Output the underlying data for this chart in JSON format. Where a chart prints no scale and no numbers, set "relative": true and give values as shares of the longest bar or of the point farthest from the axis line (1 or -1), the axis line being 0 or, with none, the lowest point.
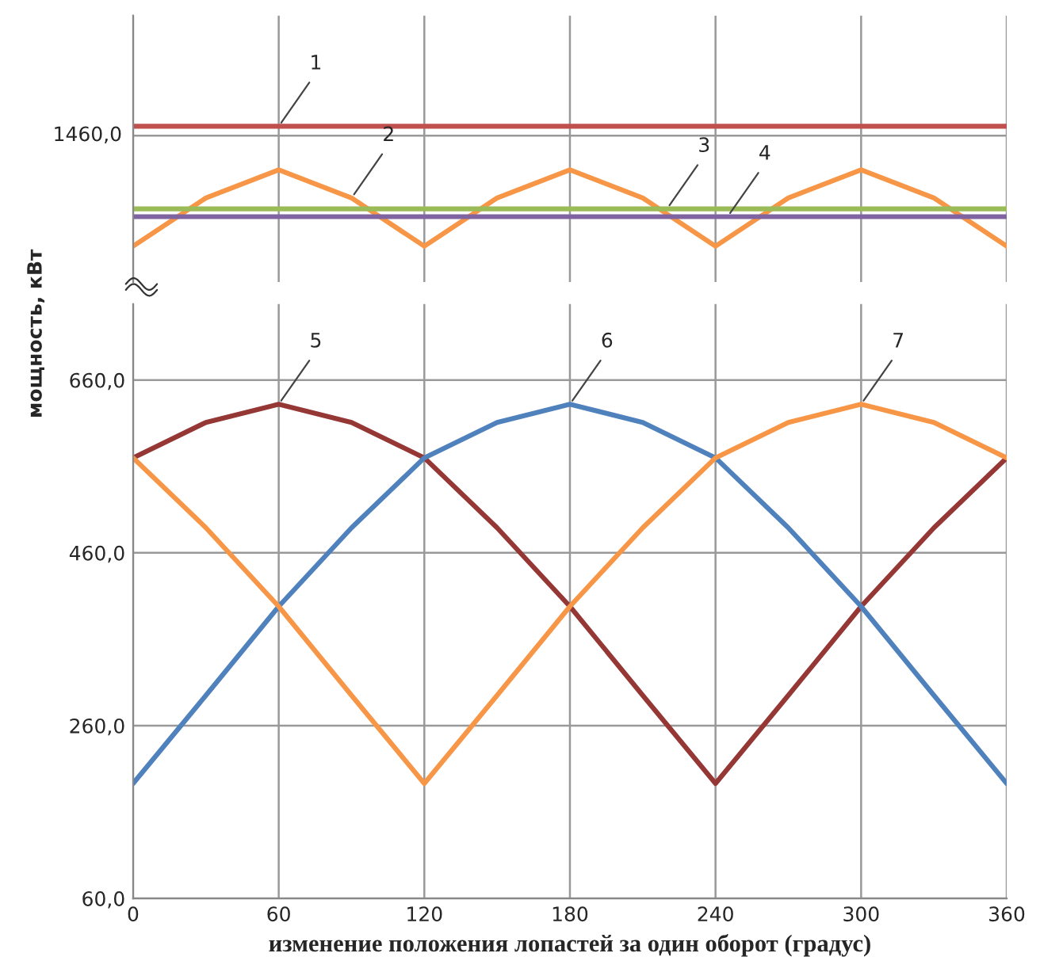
{
  "chart_data": [
    {
      "type": "line",
      "x": [
        0,
        30,
        60,
        90,
        120,
        150,
        180,
        210,
        240,
        270,
        300,
        330,
        360
      ],
      "xlim": [
        0,
        360
      ],
      "relative": true,
      "tick_labels": false,
      "ref_lines": [
        {
          "axis": "y",
          "value": 0.94
        }
      ],
      "grid": true,
      "marker": "none",
      "line_style": "solid",
      "series": [
        {
          "color": "#c0504d",
          "values": [
            1,
            1,
            1,
            1,
            1,
            1,
            1,
            1,
            1,
            1,
            1,
            1,
            1
          ]
        },
        {
          "color": "#f79646",
          "values": [
            0.23,
            0.54,
            0.72,
            0.54,
            0.23,
            0.54,
            0.72,
            0.54,
            0.23,
            0.54,
            0.72,
            0.54,
            0.23
          ]
        },
        {
          "color": "#9bbb59",
          "values": [
            0.47,
            0.47,
            0.47,
            0.47,
            0.47,
            0.47,
            0.47,
            0.47,
            0.47,
            0.47,
            0.47,
            0.47,
            0.47
          ]
        },
        {
          "color": "#8064a2",
          "values": [
            0.42,
            0.42,
            0.42,
            0.42,
            0.42,
            0.42,
            0.42,
            0.42,
            0.42,
            0.42,
            0.42,
            0.42,
            0.42
          ]
        }
      ],
      "annotations": [
        "1460,0",
        {
          "text": "1",
          "x": 60,
          "y": 1
        },
        {
          "text": "2",
          "x": 90,
          "y": 0.54
        },
        {
          "text": "3",
          "x": 220,
          "y": 0.47
        },
        {
          "text": "4",
          "x": 245,
          "y": 0.42
        }
      ]
    },
    {
      "type": "line",
      "x": [
        0,
        30,
        60,
        90,
        120,
        150,
        180,
        210,
        240,
        270,
        300,
        330,
        360
      ],
      "xlim": [
        0,
        360
      ],
      "xticks": [
        0,
        60,
        120,
        180,
        240,
        300,
        360
      ],
      "ylim": [
        60,
        748
      ],
      "yticks": [
        {
          "value": 60,
          "label": "60,0"
        },
        {
          "value": 260,
          "label": "260,0"
        },
        {
          "value": 460,
          "label": "460,0"
        },
        {
          "value": 660,
          "label": "660,0"
        }
      ],
      "grid": true,
      "marker": "none",
      "line_style": "solid",
      "xlabel": "изменение положения лопастей за один оборот (градус)",
      "ylabel": "мощность, кВт",
      "series": [
        {
          "color": "#953735",
          "values": [
            570,
            611,
            632,
            611,
            570,
            489,
            398,
            295,
            193,
            295,
            398,
            489,
            570
          ]
        },
        {
          "color": "#4f81bd",
          "values": [
            193,
            295,
            398,
            489,
            570,
            611,
            632,
            611,
            570,
            489,
            398,
            295,
            193
          ]
        },
        {
          "color": "#f79646",
          "values": [
            570,
            489,
            398,
            295,
            193,
            295,
            398,
            489,
            570,
            611,
            632,
            611,
            570
          ]
        }
      ],
      "annotations": [
        {
          "text": "5",
          "x": 60,
          "y": 632
        },
        {
          "text": "6",
          "x": 180,
          "y": 632
        },
        {
          "text": "7",
          "x": 300,
          "y": 632
        }
      ]
    }
  ]
}
